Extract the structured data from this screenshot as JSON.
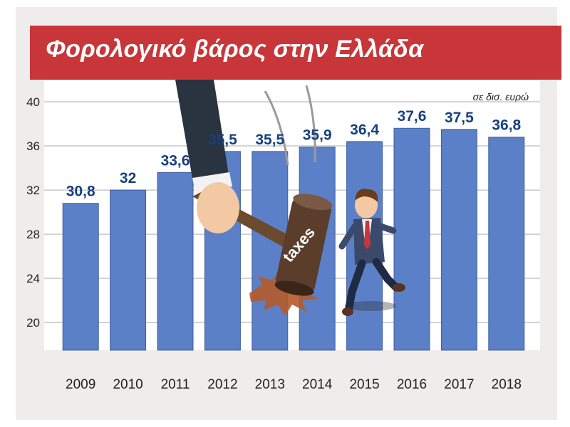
{
  "chart_data": {
    "type": "bar",
    "title": "Φορολογικό βάρος στην Ελλάδα",
    "unit": "σε δισ. ευρώ",
    "categories": [
      "2009",
      "2010",
      "2011",
      "2012",
      "2013",
      "2014",
      "2015",
      "2016",
      "2017",
      "2018"
    ],
    "values": [
      30.8,
      32,
      33.6,
      35.5,
      35.5,
      35.9,
      36.4,
      37.6,
      37.5,
      36.8
    ],
    "value_labels": [
      "30,8",
      "32",
      "33,6",
      "35,5",
      "35,5",
      "35,9",
      "36,4",
      "37,6",
      "37,5",
      "36,8"
    ],
    "y_ticks": [
      20,
      24,
      28,
      32,
      36,
      40
    ],
    "ylim": [
      17.5,
      42
    ],
    "grid": true,
    "bar_color": "#5b80c7",
    "label_color": "#17407e",
    "illustration_text": "taxes"
  }
}
